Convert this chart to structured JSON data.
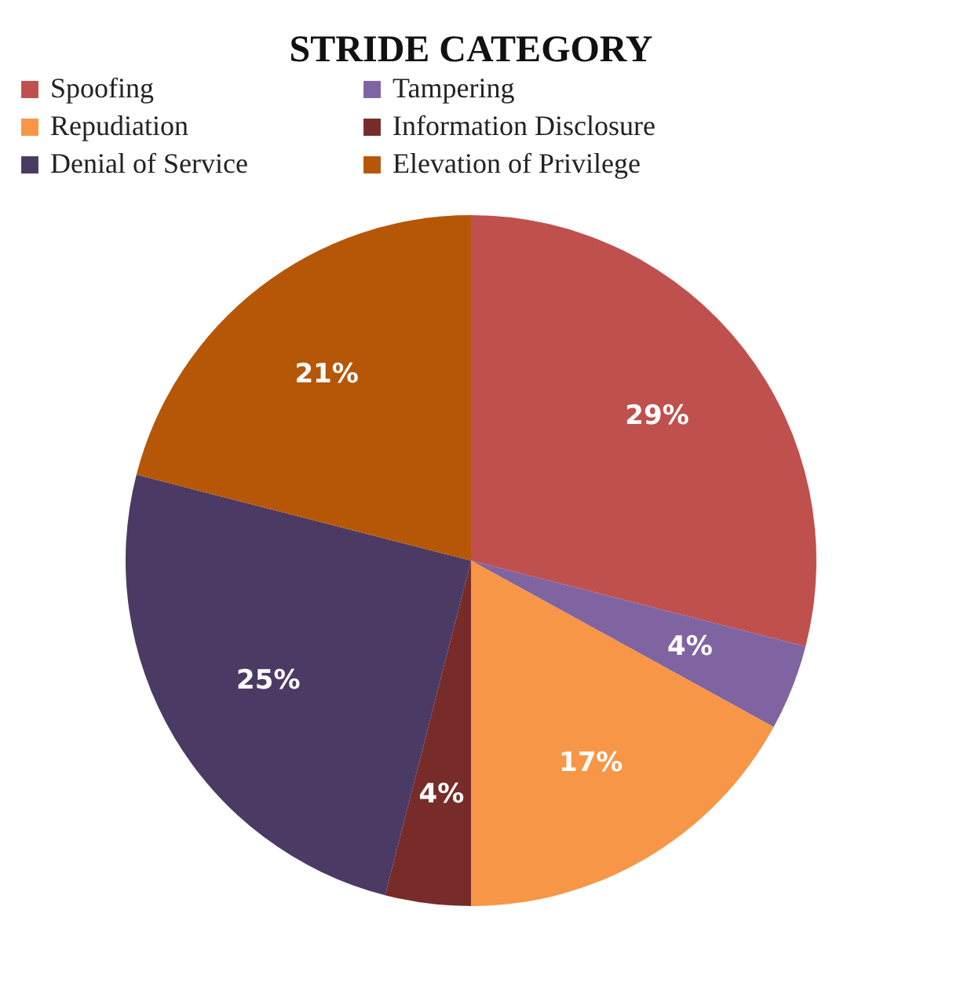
{
  "chart_data": {
    "type": "pie",
    "title": "STRIDE CATEGORY",
    "categories": [
      "Spoofing",
      "Tampering",
      "Repudiation",
      "Information Disclosure",
      "Denial of Service",
      "Elevation of Privilege"
    ],
    "values": [
      29,
      4,
      17,
      4,
      25,
      21
    ],
    "colors": [
      "#c0504d",
      "#8064a2",
      "#f79646",
      "#772c2a",
      "#4b3a63",
      "#b65708"
    ],
    "value_labels": [
      "29%",
      "4%",
      "17%",
      "4%",
      "25%",
      "21%"
    ],
    "legend": "top"
  }
}
